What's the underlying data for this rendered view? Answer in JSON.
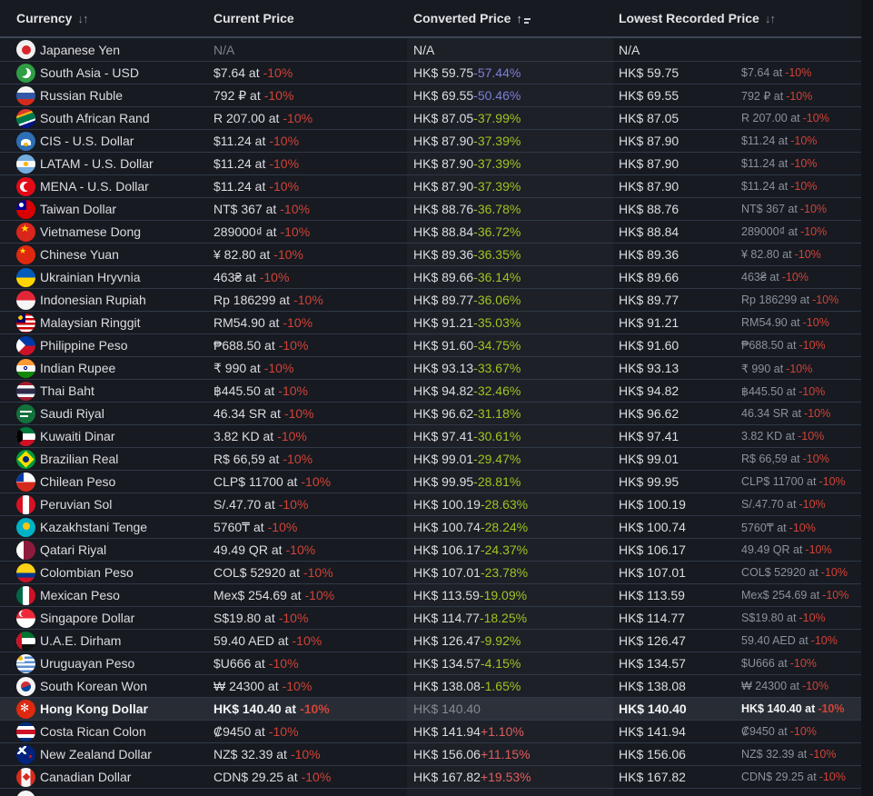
{
  "table": {
    "columns": [
      {
        "label": "Currency",
        "sort_icon": "sort-both"
      },
      {
        "label": "Current Price",
        "sort_icon": ""
      },
      {
        "label": "Converted Price",
        "sort_icon": "sort-asc"
      },
      {
        "label": "Lowest Recorded Price",
        "sort_icon": "sort-both"
      }
    ],
    "sort_both_glyph": "↓↑",
    "sort_asc_glyph": "↑",
    "rows": [
      {
        "flag": "jp",
        "currency": "Japanese Yen",
        "current_price": "N/A",
        "current_discount": "",
        "converted": "N/A",
        "pct": "",
        "pct_class": "",
        "lowest": "N/A",
        "lowest_at": "",
        "lowest_at_discount": "",
        "highlight": false,
        "converted_muted": false
      },
      {
        "flag": "pk",
        "currency": "South Asia - USD",
        "current_price": "$7.64 at",
        "current_discount": "-10%",
        "converted": "HK$ 59.75",
        "pct": "-57.44%",
        "pct_class": "purple",
        "lowest": "HK$ 59.75",
        "lowest_at": "$7.64 at",
        "lowest_at_discount": "-10%",
        "highlight": false,
        "converted_muted": false
      },
      {
        "flag": "ru",
        "currency": "Russian Ruble",
        "current_price": "792 ₽ at",
        "current_discount": "-10%",
        "converted": "HK$ 69.55",
        "pct": "-50.46%",
        "pct_class": "purple",
        "lowest": "HK$ 69.55",
        "lowest_at": "792 ₽ at",
        "lowest_at_discount": "-10%",
        "highlight": false,
        "converted_muted": false
      },
      {
        "flag": "za",
        "currency": "South African Rand",
        "current_price": "R 207.00 at",
        "current_discount": "-10%",
        "converted": "HK$ 87.05",
        "pct": "-37.99%",
        "pct_class": "green",
        "lowest": "HK$ 87.05",
        "lowest_at": "R 207.00 at",
        "lowest_at_discount": "-10%",
        "highlight": false,
        "converted_muted": false
      },
      {
        "flag": "cis",
        "currency": "CIS - U.S. Dollar",
        "current_price": "$11.24 at",
        "current_discount": "-10%",
        "converted": "HK$ 87.90",
        "pct": "-37.39%",
        "pct_class": "green",
        "lowest": "HK$ 87.90",
        "lowest_at": "$11.24 at",
        "lowest_at_discount": "-10%",
        "highlight": false,
        "converted_muted": false
      },
      {
        "flag": "ar",
        "currency": "LATAM - U.S. Dollar",
        "current_price": "$11.24 at",
        "current_discount": "-10%",
        "converted": "HK$ 87.90",
        "pct": "-37.39%",
        "pct_class": "green",
        "lowest": "HK$ 87.90",
        "lowest_at": "$11.24 at",
        "lowest_at_discount": "-10%",
        "highlight": false,
        "converted_muted": false
      },
      {
        "flag": "tr",
        "currency": "MENA - U.S. Dollar",
        "current_price": "$11.24 at",
        "current_discount": "-10%",
        "converted": "HK$ 87.90",
        "pct": "-37.39%",
        "pct_class": "green",
        "lowest": "HK$ 87.90",
        "lowest_at": "$11.24 at",
        "lowest_at_discount": "-10%",
        "highlight": false,
        "converted_muted": false
      },
      {
        "flag": "tw",
        "currency": "Taiwan Dollar",
        "current_price": "NT$ 367 at",
        "current_discount": "-10%",
        "converted": "HK$ 88.76",
        "pct": "-36.78%",
        "pct_class": "green",
        "lowest": "HK$ 88.76",
        "lowest_at": "NT$ 367 at",
        "lowest_at_discount": "-10%",
        "highlight": false,
        "converted_muted": false
      },
      {
        "flag": "vn",
        "currency": "Vietnamese Dong",
        "current_price": "289000₫ at",
        "current_discount": "-10%",
        "converted": "HK$ 88.84",
        "pct": "-36.72%",
        "pct_class": "green",
        "lowest": "HK$ 88.84",
        "lowest_at": "289000₫ at",
        "lowest_at_discount": "-10%",
        "highlight": false,
        "converted_muted": false
      },
      {
        "flag": "cn",
        "currency": "Chinese Yuan",
        "current_price": "¥ 82.80 at",
        "current_discount": "-10%",
        "converted": "HK$ 89.36",
        "pct": "-36.35%",
        "pct_class": "green",
        "lowest": "HK$ 89.36",
        "lowest_at": "¥ 82.80 at",
        "lowest_at_discount": "-10%",
        "highlight": false,
        "converted_muted": false
      },
      {
        "flag": "ua",
        "currency": "Ukrainian Hryvnia",
        "current_price": "463₴ at",
        "current_discount": "-10%",
        "converted": "HK$ 89.66",
        "pct": "-36.14%",
        "pct_class": "green",
        "lowest": "HK$ 89.66",
        "lowest_at": "463₴ at",
        "lowest_at_discount": "-10%",
        "highlight": false,
        "converted_muted": false
      },
      {
        "flag": "id",
        "currency": "Indonesian Rupiah",
        "current_price": "Rp 186299 at",
        "current_discount": "-10%",
        "converted": "HK$ 89.77",
        "pct": "-36.06%",
        "pct_class": "green",
        "lowest": "HK$ 89.77",
        "lowest_at": "Rp 186299 at",
        "lowest_at_discount": "-10%",
        "highlight": false,
        "converted_muted": false
      },
      {
        "flag": "my",
        "currency": "Malaysian Ringgit",
        "current_price": "RM54.90 at",
        "current_discount": "-10%",
        "converted": "HK$ 91.21",
        "pct": "-35.03%",
        "pct_class": "green",
        "lowest": "HK$ 91.21",
        "lowest_at": "RM54.90 at",
        "lowest_at_discount": "-10%",
        "highlight": false,
        "converted_muted": false
      },
      {
        "flag": "ph",
        "currency": "Philippine Peso",
        "current_price": "₱688.50 at",
        "current_discount": "-10%",
        "converted": "HK$ 91.60",
        "pct": "-34.75%",
        "pct_class": "green",
        "lowest": "HK$ 91.60",
        "lowest_at": "₱688.50 at",
        "lowest_at_discount": "-10%",
        "highlight": false,
        "converted_muted": false
      },
      {
        "flag": "in",
        "currency": "Indian Rupee",
        "current_price": "₹ 990 at",
        "current_discount": "-10%",
        "converted": "HK$ 93.13",
        "pct": "-33.67%",
        "pct_class": "green",
        "lowest": "HK$ 93.13",
        "lowest_at": "₹ 990 at",
        "lowest_at_discount": "-10%",
        "highlight": false,
        "converted_muted": false
      },
      {
        "flag": "th",
        "currency": "Thai Baht",
        "current_price": "฿445.50 at",
        "current_discount": "-10%",
        "converted": "HK$ 94.82",
        "pct": "-32.46%",
        "pct_class": "green",
        "lowest": "HK$ 94.82",
        "lowest_at": "฿445.50 at",
        "lowest_at_discount": "-10%",
        "highlight": false,
        "converted_muted": false
      },
      {
        "flag": "sa",
        "currency": "Saudi Riyal",
        "current_price": "46.34 SR at",
        "current_discount": "-10%",
        "converted": "HK$ 96.62",
        "pct": "-31.18%",
        "pct_class": "green",
        "lowest": "HK$ 96.62",
        "lowest_at": "46.34 SR at",
        "lowest_at_discount": "-10%",
        "highlight": false,
        "converted_muted": false
      },
      {
        "flag": "kw",
        "currency": "Kuwaiti Dinar",
        "current_price": "3.82 KD at",
        "current_discount": "-10%",
        "converted": "HK$ 97.41",
        "pct": "-30.61%",
        "pct_class": "green",
        "lowest": "HK$ 97.41",
        "lowest_at": "3.82 KD at",
        "lowest_at_discount": "-10%",
        "highlight": false,
        "converted_muted": false
      },
      {
        "flag": "br",
        "currency": "Brazilian Real",
        "current_price": "R$ 66,59 at",
        "current_discount": "-10%",
        "converted": "HK$ 99.01",
        "pct": "-29.47%",
        "pct_class": "green",
        "lowest": "HK$ 99.01",
        "lowest_at": "R$ 66,59 at",
        "lowest_at_discount": "-10%",
        "highlight": false,
        "converted_muted": false
      },
      {
        "flag": "cl",
        "currency": "Chilean Peso",
        "current_price": "CLP$ 11700 at",
        "current_discount": "-10%",
        "converted": "HK$ 99.95",
        "pct": "-28.81%",
        "pct_class": "green",
        "lowest": "HK$ 99.95",
        "lowest_at": "CLP$ 11700 at",
        "lowest_at_discount": "-10%",
        "highlight": false,
        "converted_muted": false
      },
      {
        "flag": "pe",
        "currency": "Peruvian Sol",
        "current_price": "S/.47.70 at",
        "current_discount": "-10%",
        "converted": "HK$ 100.19",
        "pct": "-28.63%",
        "pct_class": "green",
        "lowest": "HK$ 100.19",
        "lowest_at": "S/.47.70 at",
        "lowest_at_discount": "-10%",
        "highlight": false,
        "converted_muted": false
      },
      {
        "flag": "kz",
        "currency": "Kazakhstani Tenge",
        "current_price": "5760₸ at",
        "current_discount": "-10%",
        "converted": "HK$ 100.74",
        "pct": "-28.24%",
        "pct_class": "green",
        "lowest": "HK$ 100.74",
        "lowest_at": "5760₸ at",
        "lowest_at_discount": "-10%",
        "highlight": false,
        "converted_muted": false
      },
      {
        "flag": "qa",
        "currency": "Qatari Riyal",
        "current_price": "49.49 QR at",
        "current_discount": "-10%",
        "converted": "HK$ 106.17",
        "pct": "-24.37%",
        "pct_class": "green",
        "lowest": "HK$ 106.17",
        "lowest_at": "49.49 QR at",
        "lowest_at_discount": "-10%",
        "highlight": false,
        "converted_muted": false
      },
      {
        "flag": "co",
        "currency": "Colombian Peso",
        "current_price": "COL$ 52920 at",
        "current_discount": "-10%",
        "converted": "HK$ 107.01",
        "pct": "-23.78%",
        "pct_class": "green",
        "lowest": "HK$ 107.01",
        "lowest_at": "COL$ 52920 at",
        "lowest_at_discount": "-10%",
        "highlight": false,
        "converted_muted": false
      },
      {
        "flag": "mx",
        "currency": "Mexican Peso",
        "current_price": "Mex$ 254.69 at",
        "current_discount": "-10%",
        "converted": "HK$ 113.59",
        "pct": "-19.09%",
        "pct_class": "green",
        "lowest": "HK$ 113.59",
        "lowest_at": "Mex$ 254.69 at",
        "lowest_at_discount": "-10%",
        "highlight": false,
        "converted_muted": false
      },
      {
        "flag": "sg",
        "currency": "Singapore Dollar",
        "current_price": "S$19.80 at",
        "current_discount": "-10%",
        "converted": "HK$ 114.77",
        "pct": "-18.25%",
        "pct_class": "green",
        "lowest": "HK$ 114.77",
        "lowest_at": "S$19.80 at",
        "lowest_at_discount": "-10%",
        "highlight": false,
        "converted_muted": false
      },
      {
        "flag": "ae",
        "currency": "U.A.E. Dirham",
        "current_price": "59.40 AED at",
        "current_discount": "-10%",
        "converted": "HK$ 126.47",
        "pct": "-9.92%",
        "pct_class": "green",
        "lowest": "HK$ 126.47",
        "lowest_at": "59.40 AED at",
        "lowest_at_discount": "-10%",
        "highlight": false,
        "converted_muted": false
      },
      {
        "flag": "uy",
        "currency": "Uruguayan Peso",
        "current_price": "$U666 at",
        "current_discount": "-10%",
        "converted": "HK$ 134.57",
        "pct": "-4.15%",
        "pct_class": "green",
        "lowest": "HK$ 134.57",
        "lowest_at": "$U666 at",
        "lowest_at_discount": "-10%",
        "highlight": false,
        "converted_muted": false
      },
      {
        "flag": "kr",
        "currency": "South Korean Won",
        "current_price": "₩ 24300 at",
        "current_discount": "-10%",
        "converted": "HK$ 138.08",
        "pct": "-1.65%",
        "pct_class": "green",
        "lowest": "HK$ 138.08",
        "lowest_at": "₩ 24300 at",
        "lowest_at_discount": "-10%",
        "highlight": false,
        "converted_muted": false
      },
      {
        "flag": "hk",
        "currency": "Hong Kong Dollar",
        "current_price": "HK$ 140.40 at",
        "current_discount": "-10%",
        "converted": "HK$ 140.40",
        "pct": "",
        "pct_class": "",
        "lowest": "HK$ 140.40",
        "lowest_at": "HK$ 140.40 at",
        "lowest_at_discount": "-10%",
        "highlight": true,
        "converted_muted": true
      },
      {
        "flag": "cr",
        "currency": "Costa Rican Colon",
        "current_price": "₡9450 at",
        "current_discount": "-10%",
        "converted": "HK$ 141.94",
        "pct": "+1.10%",
        "pct_class": "red",
        "lowest": "HK$ 141.94",
        "lowest_at": "₡9450 at",
        "lowest_at_discount": "-10%",
        "highlight": false,
        "converted_muted": false
      },
      {
        "flag": "nz",
        "currency": "New Zealand Dollar",
        "current_price": "NZ$ 32.39 at",
        "current_discount": "-10%",
        "converted": "HK$ 156.06",
        "pct": "+11.15%",
        "pct_class": "red",
        "lowest": "HK$ 156.06",
        "lowest_at": "NZ$ 32.39 at",
        "lowest_at_discount": "-10%",
        "highlight": false,
        "converted_muted": false
      },
      {
        "flag": "ca",
        "currency": "Canadian Dollar",
        "current_price": "CDN$ 29.25 at",
        "current_discount": "-10%",
        "converted": "HK$ 167.82",
        "pct": "+19.53%",
        "pct_class": "red",
        "lowest": "HK$ 167.82",
        "lowest_at": "CDN$ 29.25 at",
        "lowest_at_discount": "-10%",
        "highlight": false,
        "converted_muted": false
      },
      {
        "flag": "partial",
        "currency": "",
        "current_price": "",
        "current_discount": "",
        "converted": "",
        "pct": "",
        "pct_class": "",
        "lowest": "",
        "lowest_at": "",
        "lowest_at_discount": "",
        "highlight": false,
        "converted_muted": false
      }
    ]
  },
  "colors": {
    "background": "#171a21",
    "row_highlight": "#282d35",
    "divider": "#303947",
    "discount_red": "#d14336",
    "pct_green": "#9fc521",
    "pct_purple": "#7d7ed8",
    "pct_red": "#df5d5d",
    "muted_gray": "#7a838c"
  }
}
